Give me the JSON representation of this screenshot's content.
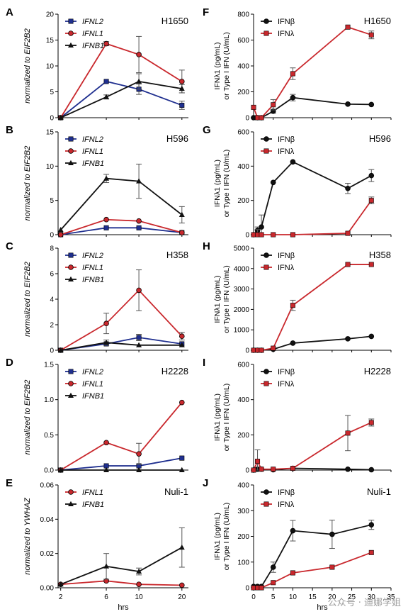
{
  "watermark": "公众号 · 迪娜学姐",
  "colors": {
    "IFNL2": "#1f2f8f",
    "IFNL1": "#c9282d",
    "IFNB1": "#111111",
    "IFNbeta": "#111111",
    "IFNlambda": "#c9282d"
  },
  "chart_data": [
    {
      "id": "A",
      "panel_label": "A",
      "cell_line": "H1650",
      "type": "line",
      "ylabel": "normalized to EIF2B2",
      "xlabel": "",
      "xlim": [
        1.5,
        20.5
      ],
      "ylim": [
        0,
        20
      ],
      "yticks": [
        0,
        5,
        10,
        15,
        20
      ],
      "xticks": [],
      "legend": "top-left",
      "series": [
        {
          "name": "IFNL2",
          "key": "IFNL2",
          "marker": "square",
          "x": [
            2,
            6,
            10,
            20
          ],
          "y": [
            0,
            7.0,
            5.5,
            2.4
          ],
          "err": [
            0,
            0,
            1.0,
            0.8
          ]
        },
        {
          "name": "IFNL1",
          "key": "IFNL1",
          "marker": "circle",
          "x": [
            2,
            6,
            10,
            20
          ],
          "y": [
            0,
            14.3,
            12.2,
            7.0
          ],
          "err": [
            0,
            0.4,
            3.5,
            2.2
          ]
        },
        {
          "name": "IFNB1",
          "key": "IFNB1",
          "marker": "triangle",
          "x": [
            2,
            6,
            10,
            20
          ],
          "y": [
            0,
            4.0,
            7.0,
            5.6
          ],
          "err": [
            0,
            0.4,
            1.5,
            0.8
          ]
        }
      ]
    },
    {
      "id": "B",
      "panel_label": "B",
      "cell_line": "H596",
      "type": "line",
      "ylabel": "normalized to EIF2B2",
      "xlabel": "",
      "xlim": [
        1.5,
        20.5
      ],
      "ylim": [
        0,
        15
      ],
      "yticks": [
        0,
        5,
        10,
        15
      ],
      "xticks": [],
      "legend": "top-left",
      "series": [
        {
          "name": "IFNL2",
          "key": "IFNL2",
          "marker": "square",
          "x": [
            2,
            6,
            10,
            20
          ],
          "y": [
            0,
            1.0,
            1.0,
            0.3
          ],
          "err": [
            0,
            0,
            0,
            0
          ]
        },
        {
          "name": "IFNL1",
          "key": "IFNL1",
          "marker": "circle",
          "x": [
            2,
            6,
            10,
            20
          ],
          "y": [
            0,
            2.2,
            2.0,
            0.3
          ],
          "err": [
            0,
            0,
            0,
            0
          ]
        },
        {
          "name": "IFNB1",
          "key": "IFNB1",
          "marker": "triangle",
          "x": [
            2,
            6,
            10,
            20
          ],
          "y": [
            0.7,
            8.2,
            7.8,
            2.9
          ],
          "err": [
            0,
            0.6,
            2.5,
            1.2
          ]
        }
      ]
    },
    {
      "id": "C",
      "panel_label": "C",
      "cell_line": "H358",
      "type": "line",
      "ylabel": "normalized to EIF2B2",
      "xlabel": "",
      "xlim": [
        1.5,
        20.5
      ],
      "ylim": [
        0,
        8
      ],
      "yticks": [
        0,
        2,
        4,
        6,
        8
      ],
      "xticks": [],
      "legend": "top-left",
      "series": [
        {
          "name": "IFNL2",
          "key": "IFNL2",
          "marker": "square",
          "x": [
            2,
            6,
            10,
            20
          ],
          "y": [
            0,
            0.5,
            1.0,
            0.5
          ],
          "err": [
            0,
            0,
            0.25,
            0
          ]
        },
        {
          "name": "IFNL1",
          "key": "IFNL1",
          "marker": "circle",
          "x": [
            2,
            6,
            10,
            20
          ],
          "y": [
            0,
            2.1,
            4.7,
            1.1
          ],
          "err": [
            0,
            0.8,
            1.6,
            0.3
          ]
        },
        {
          "name": "IFNB1",
          "key": "IFNB1",
          "marker": "triangle",
          "x": [
            2,
            6,
            10,
            20
          ],
          "y": [
            0,
            0.6,
            0.4,
            0.4
          ],
          "err": [
            0,
            0.2,
            0,
            0
          ]
        }
      ]
    },
    {
      "id": "D",
      "panel_label": "D",
      "cell_line": "H2228",
      "type": "line",
      "ylabel": "normalized to EIF2B2",
      "xlabel": "",
      "xlim": [
        1.5,
        20.5
      ],
      "ylim": [
        0,
        1.5
      ],
      "yticks": [
        0,
        0.5,
        1.0,
        1.5
      ],
      "xticks": [],
      "legend": "top-left",
      "series": [
        {
          "name": "IFNL2",
          "key": "IFNL2",
          "marker": "square",
          "x": [
            2,
            6,
            10,
            20
          ],
          "y": [
            0,
            0.06,
            0.06,
            0.17
          ],
          "err": [
            0,
            0,
            0,
            0
          ]
        },
        {
          "name": "IFNL1",
          "key": "IFNL1",
          "marker": "circle",
          "x": [
            2,
            6,
            10,
            20
          ],
          "y": [
            0,
            0.39,
            0.23,
            0.96
          ],
          "err": [
            0,
            0,
            0.15,
            0
          ]
        },
        {
          "name": "IFNB1",
          "key": "IFNB1",
          "marker": "triangle",
          "x": [
            2,
            6,
            10,
            20
          ],
          "y": [
            0,
            0,
            0,
            0
          ],
          "err": [
            0,
            0,
            0,
            0
          ]
        }
      ]
    },
    {
      "id": "E",
      "panel_label": "E",
      "cell_line": "Nuli-1",
      "type": "line",
      "ylabel": "normalized to YWHAZ",
      "xlabel": "hrs",
      "xlim": [
        1.5,
        20.5
      ],
      "ylim": [
        0,
        0.06
      ],
      "yticks": [
        0.0,
        0.02,
        0.04,
        0.06
      ],
      "xticks": [
        2,
        6,
        10,
        20
      ],
      "legend": "top-left",
      "series": [
        {
          "name": "IFNL1",
          "key": "IFNL1",
          "marker": "circle",
          "x": [
            2,
            6,
            10,
            20
          ],
          "y": [
            0.002,
            0.004,
            0.002,
            0.0015
          ],
          "err": [
            0,
            0,
            0,
            0
          ]
        },
        {
          "name": "IFNB1",
          "key": "IFNB1",
          "marker": "triangle",
          "x": [
            2,
            6,
            10,
            20
          ],
          "y": [
            0.002,
            0.0125,
            0.0095,
            0.0235
          ],
          "err": [
            0,
            0.0075,
            0.002,
            0.0115
          ]
        }
      ]
    },
    {
      "id": "F",
      "panel_label": "F",
      "cell_line": "H1650",
      "type": "line",
      "ylabel": "IFNλ1 (pg/mL) or Type I IFN (U/mL)",
      "xlabel": "",
      "xlim": [
        0,
        35
      ],
      "ylim": [
        0,
        800
      ],
      "yticks": [
        0,
        200,
        400,
        600,
        800
      ],
      "xticks": [],
      "legend": "top-left",
      "series": [
        {
          "name": "IFNβ",
          "key": "IFNbeta",
          "marker": "circle",
          "x": [
            0,
            1,
            2,
            5,
            10,
            24,
            30
          ],
          "y": [
            0,
            0,
            0,
            50,
            155,
            105,
            102
          ],
          "err": [
            0,
            0,
            0,
            15,
            25,
            0,
            0
          ]
        },
        {
          "name": "IFNλ",
          "key": "IFNlambda",
          "marker": "square",
          "x": [
            0,
            1,
            2,
            5,
            10,
            24,
            30
          ],
          "y": [
            80,
            0,
            0,
            100,
            340,
            700,
            640
          ],
          "err": [
            0,
            0,
            0,
            40,
            45,
            0,
            30
          ]
        }
      ]
    },
    {
      "id": "G",
      "panel_label": "G",
      "cell_line": "H596",
      "type": "line",
      "ylabel": "IFNλ1 (pg/mL) or Type I IFN (U/mL)",
      "xlabel": "",
      "xlim": [
        0,
        35
      ],
      "ylim": [
        0,
        600
      ],
      "yticks": [
        0,
        200,
        400,
        600
      ],
      "xticks": [],
      "legend": "top-left",
      "series": [
        {
          "name": "IFNβ",
          "key": "IFNbeta",
          "marker": "circle",
          "x": [
            0,
            1,
            2,
            5,
            10,
            24,
            30
          ],
          "y": [
            0,
            25,
            45,
            305,
            425,
            270,
            345
          ],
          "err": [
            0,
            20,
            70,
            0,
            0,
            30,
            35
          ]
        },
        {
          "name": "IFNλ",
          "key": "IFNlambda",
          "marker": "square",
          "x": [
            0,
            1,
            2,
            5,
            10,
            24,
            30
          ],
          "y": [
            0,
            0,
            0,
            0,
            0,
            8,
            200
          ],
          "err": [
            0,
            30,
            0,
            0,
            0,
            0,
            20
          ]
        }
      ]
    },
    {
      "id": "H",
      "panel_label": "H",
      "cell_line": "H358",
      "type": "line",
      "ylabel": "IFNλ1 (pg/mL) or Type I IFN (U/mL)",
      "xlabel": "",
      "xlim": [
        0,
        35
      ],
      "ylim": [
        0,
        5000
      ],
      "yticks": [
        0,
        1000,
        2000,
        3000,
        4000,
        5000
      ],
      "xticks": [],
      "legend": "top-left",
      "series": [
        {
          "name": "IFNβ",
          "key": "IFNbeta",
          "marker": "circle",
          "x": [
            0,
            1,
            2,
            5,
            10,
            24,
            30
          ],
          "y": [
            0,
            0,
            0,
            50,
            350,
            560,
            680
          ],
          "err": [
            0,
            0,
            0,
            0,
            0,
            0,
            0
          ]
        },
        {
          "name": "IFNλ",
          "key": "IFNlambda",
          "marker": "square",
          "x": [
            0,
            1,
            2,
            5,
            10,
            24,
            30
          ],
          "y": [
            0,
            0,
            0,
            100,
            2200,
            4200,
            4200
          ],
          "err": [
            0,
            0,
            0,
            0,
            250,
            0,
            0
          ]
        }
      ]
    },
    {
      "id": "I",
      "panel_label": "I",
      "cell_line": "H2228",
      "type": "line",
      "ylabel": "IFNλ1 (pg/mL) or Type I IFN (U/mL)",
      "xlabel": "",
      "xlim": [
        0,
        35
      ],
      "ylim": [
        0,
        600
      ],
      "yticks": [
        0,
        200,
        400,
        600
      ],
      "xticks": [],
      "legend": "top-left",
      "series": [
        {
          "name": "IFNβ",
          "key": "IFNbeta",
          "marker": "circle",
          "x": [
            0,
            1,
            2,
            5,
            10,
            24,
            30
          ],
          "y": [
            0,
            5,
            5,
            2,
            10,
            5,
            2
          ],
          "err": [
            0,
            0,
            0,
            0,
            0,
            0,
            0
          ]
        },
        {
          "name": "IFNλ",
          "key": "IFNlambda",
          "marker": "square",
          "x": [
            0,
            1,
            2,
            5,
            10,
            24,
            30
          ],
          "y": [
            0,
            50,
            5,
            5,
            10,
            210,
            270
          ],
          "err": [
            0,
            65,
            0,
            0,
            0,
            100,
            20
          ]
        }
      ]
    },
    {
      "id": "J",
      "panel_label": "J",
      "cell_line": "Nuli-1",
      "type": "line",
      "ylabel": "IFNλ1 (pg/mL) or Type I IFN (U/mL)",
      "xlabel": "hrs",
      "xlim": [
        0,
        35
      ],
      "ylim": [
        0,
        400
      ],
      "yticks": [
        0,
        100,
        200,
        300,
        400
      ],
      "xticks": [
        0,
        5,
        10,
        15,
        20,
        25,
        30,
        35
      ],
      "legend": "top-left",
      "series": [
        {
          "name": "IFNβ",
          "key": "IFNbeta",
          "marker": "circle",
          "x": [
            0,
            1,
            2,
            5,
            10,
            20,
            30
          ],
          "y": [
            5,
            5,
            5,
            80,
            222,
            208,
            245
          ],
          "err": [
            0,
            0,
            0,
            20,
            40,
            55,
            18
          ]
        },
        {
          "name": "IFNλ",
          "key": "IFNlambda",
          "marker": "square",
          "x": [
            0,
            1,
            2,
            5,
            10,
            20,
            30
          ],
          "y": [
            0,
            0,
            0,
            20,
            58,
            80,
            137
          ],
          "err": [
            0,
            0,
            0,
            0,
            0,
            0,
            0
          ]
        }
      ]
    }
  ]
}
